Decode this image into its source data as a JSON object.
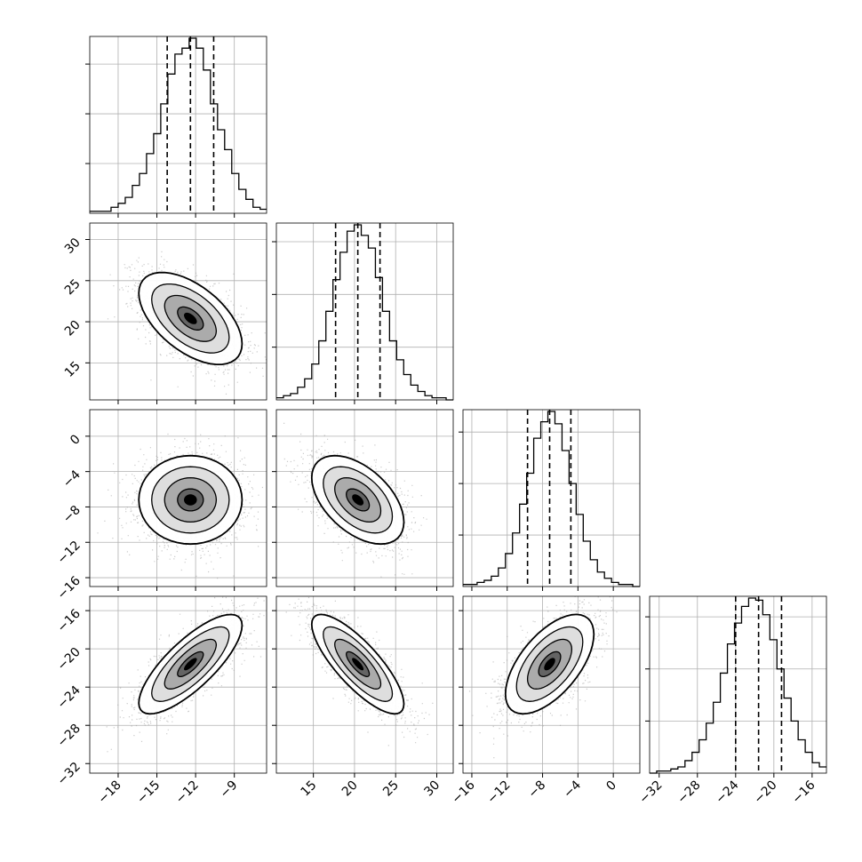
{
  "chart_data": {
    "type": "corner",
    "parameters": 4,
    "grid": true,
    "panels_diagonal": [
      {
        "param_index": 0,
        "range": [
          -20.2,
          -6.5
        ],
        "quantiles": [
          -14.2,
          -12.4,
          -10.6
        ],
        "hist_bin_edges": [
          -20.2,
          -19.65,
          -19.1,
          -18.55,
          -18.0,
          -17.45,
          -16.9,
          -16.35,
          -15.8,
          -15.25,
          -14.7,
          -14.15,
          -13.6,
          -13.05,
          -12.5,
          -11.95,
          -11.4,
          -10.85,
          -10.3,
          -9.75,
          -9.2,
          -8.65,
          -8.1,
          -7.55,
          -7.0,
          -6.5
        ],
        "hist_counts": [
          1,
          1,
          1,
          3,
          5,
          8,
          14,
          20,
          30,
          40,
          55,
          70,
          80,
          83,
          88,
          83,
          72,
          55,
          42,
          32,
          20,
          12,
          7,
          3,
          2
        ],
        "y_ticks": [
          25,
          50,
          75
        ]
      },
      {
        "param_index": 1,
        "range": [
          10.5,
          32.0
        ],
        "quantiles": [
          17.7,
          20.4,
          23.1
        ],
        "hist_bin_edges": [
          10.5,
          11.36,
          12.22,
          13.08,
          13.94,
          14.8,
          15.66,
          16.52,
          17.38,
          18.24,
          19.1,
          19.96,
          20.82,
          21.68,
          22.54,
          23.4,
          24.26,
          25.12,
          25.98,
          26.84,
          27.7,
          28.56,
          29.42,
          30.28,
          31.14,
          32.0
        ],
        "hist_counts": [
          1,
          2,
          3,
          6,
          10,
          17,
          28,
          42,
          57,
          70,
          80,
          83,
          78,
          72,
          58,
          42,
          28,
          19,
          12,
          7,
          4,
          2,
          1,
          1,
          0
        ],
        "y_ticks": [
          25,
          50,
          75
        ]
      },
      {
        "param_index": 2,
        "range": [
          -17.0,
          3.0
        ],
        "quantiles": [
          -9.7,
          -7.2,
          -4.8
        ],
        "hist_bin_edges": [
          -17.0,
          -16.2,
          -15.4,
          -14.6,
          -13.8,
          -13.0,
          -12.2,
          -11.4,
          -10.6,
          -9.8,
          -9.0,
          -8.2,
          -7.4,
          -6.6,
          -5.8,
          -5.0,
          -4.2,
          -3.4,
          -2.6,
          -1.8,
          -1.0,
          -0.2,
          0.6,
          1.4,
          2.2,
          3.0
        ],
        "hist_counts": [
          1,
          1,
          2,
          3,
          5,
          9,
          16,
          26,
          40,
          55,
          72,
          80,
          85,
          79,
          66,
          50,
          35,
          22,
          13,
          7,
          4,
          2,
          1,
          1,
          0
        ],
        "y_ticks": [
          25,
          50,
          75
        ]
      },
      {
        "param_index": 3,
        "range": [
          -33.0,
          -14.5
        ],
        "quantiles": [
          -24.0,
          -21.6,
          -19.2
        ],
        "hist_bin_edges": [
          -33.0,
          -32.26,
          -31.52,
          -30.78,
          -30.04,
          -29.3,
          -28.56,
          -27.82,
          -27.08,
          -26.34,
          -25.6,
          -24.86,
          -24.12,
          -23.38,
          -22.64,
          -21.9,
          -21.16,
          -20.42,
          -19.68,
          -18.94,
          -18.2,
          -17.46,
          -16.72,
          -15.98,
          -15.24,
          -14.5
        ],
        "hist_counts": [
          0,
          1,
          1,
          2,
          3,
          6,
          10,
          16,
          24,
          34,
          48,
          62,
          72,
          80,
          84,
          83,
          76,
          64,
          50,
          36,
          25,
          16,
          10,
          5,
          3
        ],
        "y_ticks": [
          25,
          50,
          75
        ]
      }
    ],
    "panels_offdiagonal": [
      {
        "row": 1,
        "col": 0,
        "x_param": 0,
        "y_param": 1,
        "center": [
          -12.4,
          20.4
        ],
        "sigma": [
          2.0,
          2.8
        ],
        "correlation": -0.55
      },
      {
        "row": 2,
        "col": 0,
        "x_param": 0,
        "y_param": 2,
        "center": [
          -12.4,
          -7.2
        ],
        "sigma": [
          2.0,
          2.5
        ],
        "correlation": 0.0
      },
      {
        "row": 2,
        "col": 1,
        "x_param": 1,
        "y_param": 2,
        "center": [
          20.4,
          -7.2
        ],
        "sigma": [
          2.8,
          2.5
        ],
        "correlation": -0.5
      },
      {
        "row": 3,
        "col": 0,
        "x_param": 0,
        "y_param": 3,
        "center": [
          -12.4,
          -21.6
        ],
        "sigma": [
          2.0,
          2.6
        ],
        "correlation": 0.78
      },
      {
        "row": 3,
        "col": 1,
        "x_param": 1,
        "y_param": 3,
        "center": [
          20.4,
          -21.6
        ],
        "sigma": [
          2.8,
          2.6
        ],
        "correlation": -0.8
      },
      {
        "row": 3,
        "col": 2,
        "x_param": 2,
        "y_param": 3,
        "center": [
          -7.2,
          -21.6
        ],
        "sigma": [
          2.5,
          2.6
        ],
        "correlation": 0.6
      }
    ],
    "contour_levels_sigma": [
      0.5,
      1.0,
      1.5,
      2.0
    ],
    "axis_ticks": {
      "x": [
        {
          "param_index": 0,
          "values": [
            -18,
            -15,
            -12,
            -9
          ],
          "labels": [
            "−18",
            "−15",
            "−12",
            "−9"
          ]
        },
        {
          "param_index": 1,
          "values": [
            15,
            20,
            25,
            30
          ],
          "labels": [
            "15",
            "20",
            "25",
            "30"
          ]
        },
        {
          "param_index": 2,
          "values": [
            -16,
            -12,
            -8,
            -4,
            0
          ],
          "labels": [
            "−16",
            "−12",
            "−8",
            "−4",
            "0"
          ]
        },
        {
          "param_index": 3,
          "values": [
            -32,
            -28,
            -24,
            -20,
            -16
          ],
          "labels": [
            "−32",
            "−28",
            "−24",
            "−20",
            "−16"
          ]
        }
      ],
      "y": [
        {
          "param_index": 1,
          "values": [
            15,
            20,
            25,
            30
          ],
          "labels": [
            "15",
            "20",
            "25",
            "30"
          ]
        },
        {
          "param_index": 2,
          "values": [
            -16,
            -12,
            -8,
            -4,
            0
          ],
          "labels": [
            "−16",
            "−12",
            "−8",
            "−4",
            "0"
          ]
        },
        {
          "param_index": 3,
          "values": [
            -32,
            -28,
            -24,
            -20,
            -16
          ],
          "labels": [
            "−32",
            "−28",
            "−24",
            "−20",
            "−16"
          ]
        }
      ]
    },
    "colors": {
      "frame": "#000000",
      "grid": "#b0b0b0",
      "scatter": "#a0a0a0",
      "contour_line": "#000000",
      "hist_line": "#000000",
      "quantile_line": "#000000"
    }
  }
}
